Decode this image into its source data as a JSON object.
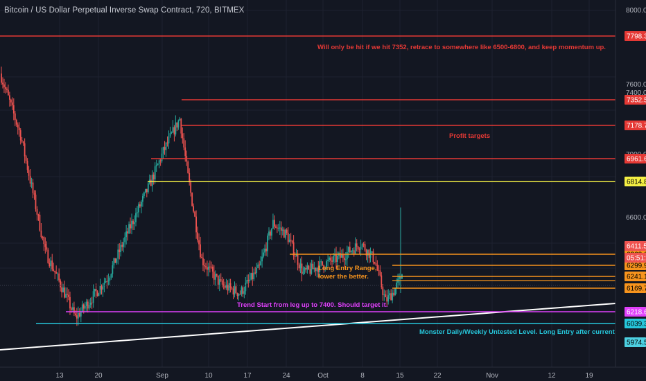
{
  "header": {
    "title": "Bitcoin / US Dollar Perpetual Inverse Swap Contract, 720, BITMEX"
  },
  "chart_data": {
    "type": "candlestick",
    "ylim": [
      5870,
      8070
    ],
    "x_ticks": [
      "13",
      "20",
      "Sep",
      "10",
      "17",
      "24",
      "Oct",
      "8",
      "15",
      "22",
      "Nov",
      "12",
      "19"
    ],
    "y_ticks": [
      "8000.0",
      "7600.0",
      "7400.0",
      "7000.0",
      "6600.0",
      "6450.0"
    ],
    "levels": [
      {
        "value": 7798.3,
        "label": "7798.3",
        "color": "#e53935"
      },
      {
        "value": 7352.5,
        "label": "7352.5",
        "color": "#e53935"
      },
      {
        "value": 7178.7,
        "label": "7178.7",
        "color": "#e53935"
      },
      {
        "value": 6961.6,
        "label": "6961.6",
        "color": "#e53935"
      },
      {
        "value": 6814.8,
        "label": "6814.8",
        "color": "#f5f044"
      },
      {
        "value": 6368.6,
        "label": "6368.6",
        "color": "#f7941d"
      },
      {
        "value": 6299.9,
        "label": "6299.9",
        "color": "#f7941d"
      },
      {
        "value": 6241.1,
        "label": "6241.1",
        "color": "#f7941d"
      },
      {
        "value": 6169.7,
        "label": "6169.7",
        "color": "#f7941d"
      },
      {
        "value": 6218.6,
        "label": "6218.6",
        "color": "#e040fb"
      },
      {
        "value": 6039.3,
        "label": "6039.3",
        "color": "#26c6da"
      }
    ],
    "current_price": {
      "value": 6411.5,
      "label": "6411.5",
      "countdown": "05:51:58"
    },
    "extra_price": {
      "value": 5974.5,
      "label": "5974.5"
    },
    "trendline_label": "Trend Start from leg up to 7400. Should target it.",
    "annotations": {
      "top_red": "Will only be hit if we hit 7352, retrace to somewhere like 6500-6800, and keep momentum up.",
      "profit_targets": "Profit targets",
      "long_entry_1": "Long Entry Range,",
      "long_entry_2": "lower the better.",
      "monster": "Monster Daily/Weekly Untested Level. Long Entry after current leg up end."
    },
    "colors": {
      "up": "#26a69a",
      "down": "#ef5350",
      "background": "#131722"
    }
  }
}
